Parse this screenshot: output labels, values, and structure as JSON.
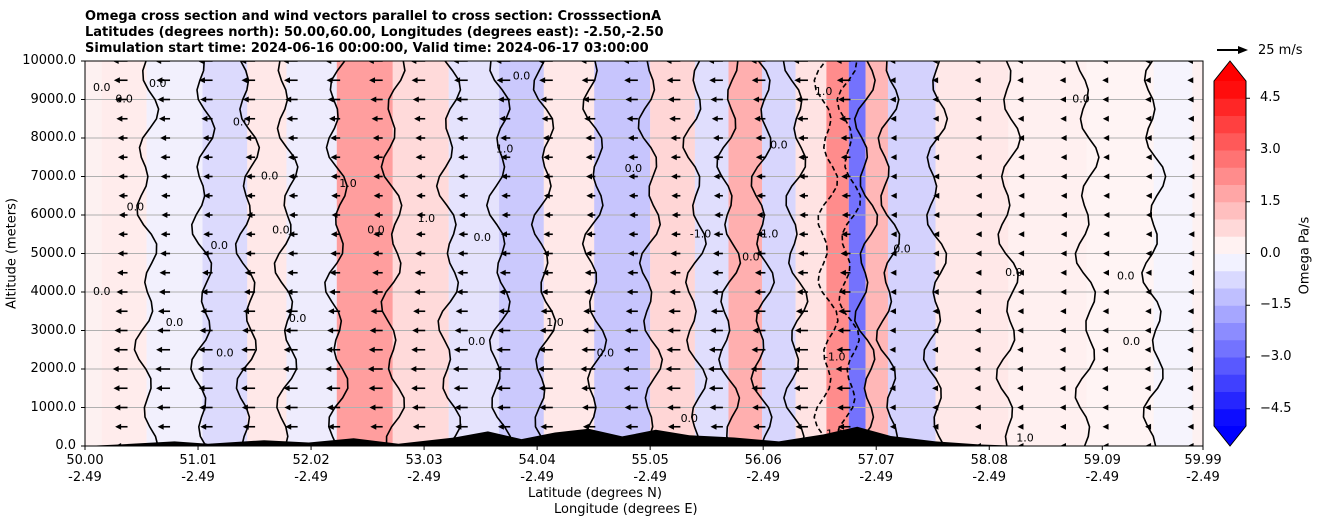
{
  "chart_data": {
    "type": "heatmap",
    "title_lines": [
      "Omega cross section and wind vectors parallel to cross section: CrosssectionA",
      "Latitudes (degrees north): 50.00,60.00, Longitudes (degrees east): -2.50,-2.50",
      "Simulation start time: 2024-06-16 00:00:00, Valid time: 2024-06-17 03:00:00"
    ],
    "ylabel": "Altitude (meters)",
    "xlabel_lat": "Latitude (degrees N)",
    "xlabel_lon": "Longitude (degrees E)",
    "y_ticks": [
      "0.0",
      "1000.0",
      "2000.0",
      "3000.0",
      "4000.0",
      "5000.0",
      "6000.0",
      "7000.0",
      "8000.0",
      "9000.0",
      "10000.0"
    ],
    "ylim": [
      0,
      10000
    ],
    "x_ticks": [
      {
        "lat": "50.00",
        "lon": "-2.49"
      },
      {
        "lat": "51.01",
        "lon": "-2.49"
      },
      {
        "lat": "52.02",
        "lon": "-2.49"
      },
      {
        "lat": "53.03",
        "lon": "-2.49"
      },
      {
        "lat": "54.04",
        "lon": "-2.49"
      },
      {
        "lat": "55.05",
        "lon": "-2.49"
      },
      {
        "lat": "56.06",
        "lon": "-2.49"
      },
      {
        "lat": "57.07",
        "lon": "-2.49"
      },
      {
        "lat": "58.08",
        "lon": "-2.49"
      },
      {
        "lat": "59.09",
        "lon": "-2.49"
      },
      {
        "lat": "59.99",
        "lon": "-2.49"
      }
    ],
    "xlim": [
      50.0,
      59.99
    ],
    "grid": "horizontal",
    "colorbar": {
      "label": "Omega Pa/s",
      "range": [
        -5,
        5
      ],
      "ticks": [
        "4.5",
        "3.0",
        "1.5",
        "0.0",
        "−1.5",
        "−3.0",
        "−4.5"
      ],
      "tick_values": [
        4.5,
        3.0,
        1.5,
        0.0,
        -1.5,
        -3.0,
        -4.5
      ],
      "cmap": "bwr",
      "extend": "both"
    },
    "quiver_key": {
      "label": "25 m/s",
      "speed": 25
    },
    "omega_bands": [
      {
        "lat": 50.3,
        "value": 0.4
      },
      {
        "lat": 50.8,
        "value": -0.3
      },
      {
        "lat": 51.3,
        "value": -0.8
      },
      {
        "lat": 51.6,
        "value": 0.5
      },
      {
        "lat": 52.0,
        "value": -0.4
      },
      {
        "lat": 52.5,
        "value": 2.2
      },
      {
        "lat": 53.0,
        "value": 0.8
      },
      {
        "lat": 53.5,
        "value": -0.6
      },
      {
        "lat": 53.9,
        "value": -1.2
      },
      {
        "lat": 54.3,
        "value": 0.5
      },
      {
        "lat": 54.8,
        "value": -1.3
      },
      {
        "lat": 55.3,
        "value": 0.9
      },
      {
        "lat": 55.6,
        "value": -0.7
      },
      {
        "lat": 55.9,
        "value": 1.8
      },
      {
        "lat": 56.2,
        "value": -0.9
      },
      {
        "lat": 56.5,
        "value": 0.6
      },
      {
        "lat": 56.75,
        "value": 2.6
      },
      {
        "lat": 56.9,
        "value": -3.2
      },
      {
        "lat": 57.05,
        "value": 1.6
      },
      {
        "lat": 57.3,
        "value": -1.0
      },
      {
        "lat": 57.9,
        "value": 0.5
      },
      {
        "lat": 58.6,
        "value": 0.3
      },
      {
        "lat": 59.3,
        "value": 0.2
      },
      {
        "lat": 59.8,
        "value": -0.2
      }
    ],
    "contour_labels": [
      {
        "text": "0.0",
        "lat": 50.15,
        "alt": 9300
      },
      {
        "text": "0.0",
        "lat": 50.35,
        "alt": 9000
      },
      {
        "text": "0.0",
        "lat": 50.65,
        "alt": 9400
      },
      {
        "text": "0.0",
        "lat": 51.4,
        "alt": 8400
      },
      {
        "text": "0.0",
        "lat": 51.65,
        "alt": 7000
      },
      {
        "text": "0.0",
        "lat": 51.75,
        "alt": 5600
      },
      {
        "text": "0.0",
        "lat": 51.2,
        "alt": 5200
      },
      {
        "text": "0.0",
        "lat": 50.45,
        "alt": 6200
      },
      {
        "text": "0.0",
        "lat": 50.15,
        "alt": 4000
      },
      {
        "text": "0.0",
        "lat": 50.8,
        "alt": 3200
      },
      {
        "text": "0.0",
        "lat": 51.9,
        "alt": 3300
      },
      {
        "text": "0.0",
        "lat": 51.25,
        "alt": 2400
      },
      {
        "text": "1.0",
        "lat": 52.35,
        "alt": 6800
      },
      {
        "text": "0.0",
        "lat": 52.6,
        "alt": 5600
      },
      {
        "text": "1.0",
        "lat": 53.05,
        "alt": 5900
      },
      {
        "text": "0.0",
        "lat": 53.55,
        "alt": 5400
      },
      {
        "text": "0.0",
        "lat": 53.5,
        "alt": 2700
      },
      {
        "text": "1.0",
        "lat": 53.75,
        "alt": 7700
      },
      {
        "text": "1.0",
        "lat": 54.2,
        "alt": 3200
      },
      {
        "text": "0.0",
        "lat": 54.65,
        "alt": 2400
      },
      {
        "text": "0.0",
        "lat": 54.9,
        "alt": 7200
      },
      {
        "text": "-1.0",
        "lat": 55.5,
        "alt": 5500
      },
      {
        "text": "0.0",
        "lat": 55.95,
        "alt": 4900
      },
      {
        "text": "-1.0",
        "lat": 56.1,
        "alt": 5500
      },
      {
        "text": "0.0",
        "lat": 56.2,
        "alt": 7800
      },
      {
        "text": "1.0",
        "lat": 56.6,
        "alt": 9200
      },
      {
        "text": "-1.0",
        "lat": 56.7,
        "alt": 2300
      },
      {
        "text": "1.0",
        "lat": 56.7,
        "alt": 300
      },
      {
        "text": "0.0",
        "lat": 57.3,
        "alt": 5100
      },
      {
        "text": "0.0",
        "lat": 58.3,
        "alt": 4500
      },
      {
        "text": "0.0",
        "lat": 59.3,
        "alt": 4400
      },
      {
        "text": "0.0",
        "lat": 59.35,
        "alt": 2700
      },
      {
        "text": "0.0",
        "lat": 58.9,
        "alt": 9000
      },
      {
        "text": "1.0",
        "lat": 58.4,
        "alt": 200
      },
      {
        "text": "0.0",
        "lat": 55.4,
        "alt": 700
      },
      {
        "text": "0.0",
        "lat": 53.9,
        "alt": 9600
      }
    ],
    "wind_u_profile": [
      {
        "alt": 500,
        "u": -10
      },
      {
        "alt": 2000,
        "u": -12
      },
      {
        "alt": 4000,
        "u": -9
      },
      {
        "alt": 6000,
        "u": -7
      },
      {
        "alt": 8000,
        "u": -8
      },
      {
        "alt": 10000,
        "u": -12
      }
    ],
    "terrain": [
      {
        "lat": 50.0,
        "alt": 0
      },
      {
        "lat": 50.3,
        "alt": 40
      },
      {
        "lat": 50.8,
        "alt": 120
      },
      {
        "lat": 51.1,
        "alt": 60
      },
      {
        "lat": 51.6,
        "alt": 150
      },
      {
        "lat": 52.0,
        "alt": 90
      },
      {
        "lat": 52.4,
        "alt": 200
      },
      {
        "lat": 52.8,
        "alt": 60
      },
      {
        "lat": 53.3,
        "alt": 220
      },
      {
        "lat": 53.6,
        "alt": 380
      },
      {
        "lat": 53.9,
        "alt": 180
      },
      {
        "lat": 54.2,
        "alt": 350
      },
      {
        "lat": 54.5,
        "alt": 450
      },
      {
        "lat": 54.8,
        "alt": 250
      },
      {
        "lat": 55.1,
        "alt": 420
      },
      {
        "lat": 55.4,
        "alt": 280
      },
      {
        "lat": 55.8,
        "alt": 220
      },
      {
        "lat": 56.2,
        "alt": 120
      },
      {
        "lat": 56.6,
        "alt": 300
      },
      {
        "lat": 56.9,
        "alt": 500
      },
      {
        "lat": 57.2,
        "alt": 260
      },
      {
        "lat": 57.6,
        "alt": 120
      },
      {
        "lat": 58.0,
        "alt": 40
      },
      {
        "lat": 58.4,
        "alt": 0
      },
      {
        "lat": 59.99,
        "alt": 0
      }
    ]
  }
}
